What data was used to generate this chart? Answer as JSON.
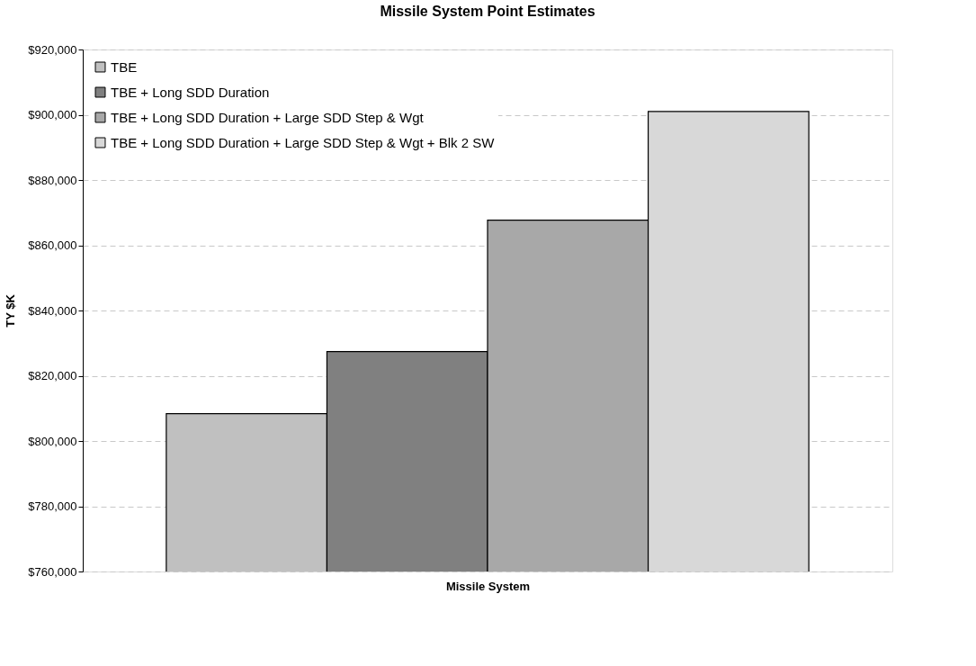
{
  "chart_data": {
    "type": "bar",
    "title": "Missile System Point Estimates",
    "xlabel": "Missile System",
    "ylabel": "TY $K",
    "categories": [
      null
    ],
    "series": [
      {
        "name": "TBE",
        "color": "#c0c0c0",
        "values": [
          808400
        ]
      },
      {
        "name": "TBE + Long SDD Duration",
        "color": "#808080",
        "values": [
          827400
        ]
      },
      {
        "name": "TBE + Long SDD Duration + Large SDD Step & Wgt",
        "color": "#a8a8a8",
        "values": [
          867700
        ]
      },
      {
        "name": "TBE + Long SDD Duration + Large SDD Step & Wgt + Blk 2 SW",
        "color": "#d8d8d8",
        "values": [
          901000
        ]
      }
    ],
    "ylim": [
      760000,
      920000
    ],
    "yticks": [
      {
        "value": 760000,
        "label": "$760,000"
      },
      {
        "value": 780000,
        "label": "$780,000"
      },
      {
        "value": 800000,
        "label": "$800,000"
      },
      {
        "value": 820000,
        "label": "$820,000"
      },
      {
        "value": 840000,
        "label": "$840,000"
      },
      {
        "value": 860000,
        "label": "$860,000"
      },
      {
        "value": 880000,
        "label": "$880,000"
      },
      {
        "value": 900000,
        "label": "$900,000"
      },
      {
        "value": 920000,
        "label": "$920,000"
      }
    ],
    "grid": "y",
    "legend": "top left"
  }
}
